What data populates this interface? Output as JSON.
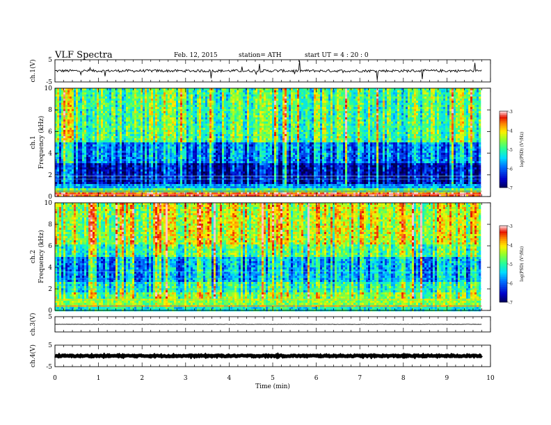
{
  "header": {
    "title": "VLF  Spectra",
    "date": "Feb. 12, 2015",
    "station": "station= ATH",
    "start": "start  UT  =   4  : 20 : 0"
  },
  "chart_data": {
    "type": "heatmap",
    "xlabel": "Time  (min)",
    "xlim": [
      0,
      10
    ],
    "x_ticks": [
      "0",
      "1",
      "2",
      "3",
      "4",
      "5",
      "6",
      "7",
      "8",
      "9",
      "10"
    ],
    "data_end_min": 9.8,
    "panels": [
      {
        "kind": "waveform",
        "ylabel": "ch.1(V)",
        "ylim": [
          -5,
          5
        ],
        "y_ticks": [
          "5",
          "-5"
        ],
        "baseline": 0,
        "noise": 0.6,
        "spikes": true
      },
      {
        "kind": "spectrogram",
        "ylabel_top": "ch.1",
        "ylabel": "Frequency  (kHz)",
        "ylim": [
          0,
          10
        ],
        "y_ticks": [
          "0",
          "2",
          "4",
          "6",
          "8",
          "10"
        ],
        "colorbar_label": "log(PSD) (V²/Hz)",
        "colorbar_ticks": [
          "-3",
          "-4",
          "-5",
          "-6",
          "-7"
        ],
        "colorbar_range": [
          -7,
          -3
        ],
        "profile": "ch1"
      },
      {
        "kind": "spectrogram",
        "ylabel_top": "ch.2",
        "ylabel": "Frequency  (kHz)",
        "ylim": [
          0,
          10
        ],
        "y_ticks": [
          "0",
          "2",
          "4",
          "6",
          "8",
          "10"
        ],
        "colorbar_label": "log(PSD) (V²/Hz)",
        "colorbar_ticks": [
          "-3",
          "-4",
          "-5",
          "-6",
          "-7"
        ],
        "colorbar_range": [
          -7,
          -3
        ],
        "profile": "ch2"
      },
      {
        "kind": "waveform",
        "ylabel": "ch.3(V)",
        "ylim": [
          -5,
          5
        ],
        "y_ticks": [
          "5"
        ],
        "baseline": 0,
        "noise": 0.1,
        "spikes": false
      },
      {
        "kind": "waveform",
        "ylabel": "ch.4(V)",
        "ylim": [
          -5,
          5
        ],
        "y_ticks": [
          "5",
          "-5"
        ],
        "baseline": 0,
        "noise": 0.3,
        "spikes": false,
        "thick": true
      }
    ]
  }
}
